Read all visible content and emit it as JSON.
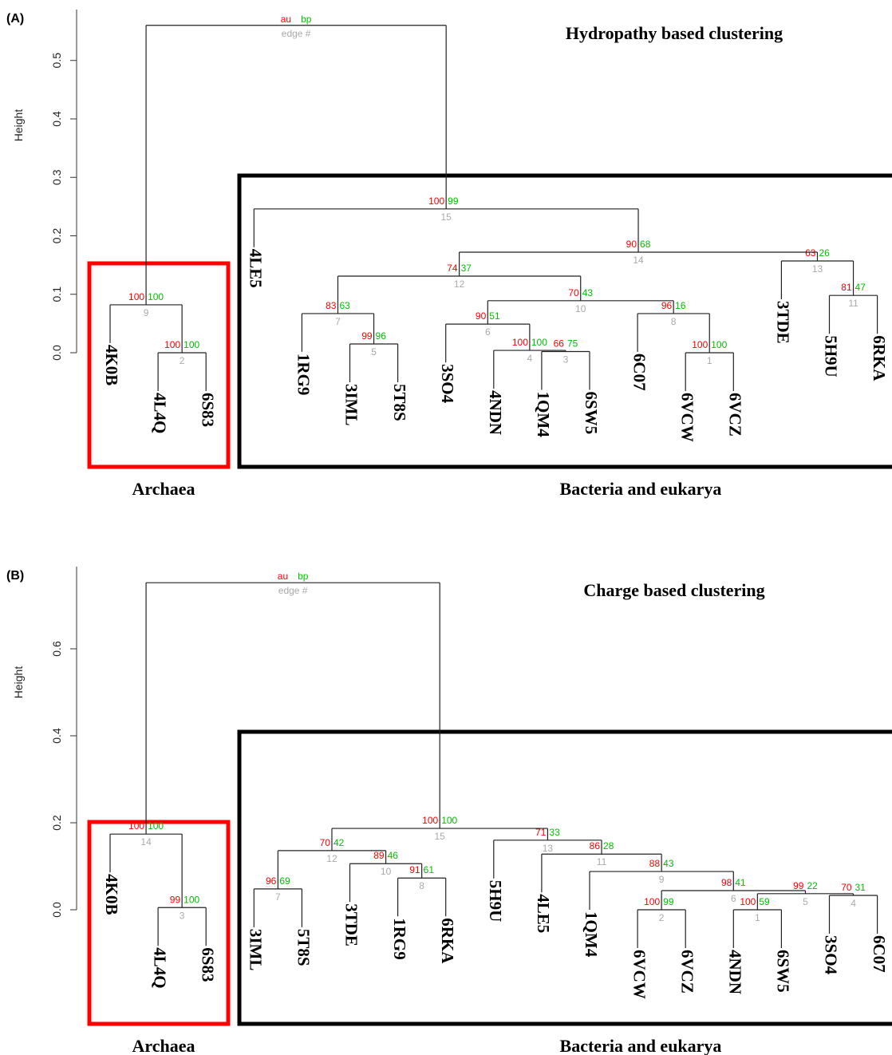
{
  "chart_data": [
    {
      "type": "dendrogram",
      "panel": "(A)",
      "title": "Hydropathy based clustering",
      "ylabel": "Height",
      "ylim": [
        0,
        0.587
      ],
      "yticks": [
        {
          "value": 0,
          "label": "0.0"
        },
        0.1,
        0.2,
        0.3,
        0.4,
        0.5
      ],
      "legend": [
        "au",
        "bp",
        "edge #"
      ],
      "colors": {
        "au": "#ff0000",
        "bp": "#00c000",
        "edge": "#aaaaaa"
      },
      "leaves": [
        "4K0B",
        "4L4Q",
        "6S83",
        "4LE5",
        "1RG9",
        "3IML",
        "5T8S",
        "3SO4",
        "4NDN",
        "1QM4",
        "6SW5",
        "6C07",
        "6VCW",
        "6VCZ",
        "3TDE",
        "5H9U",
        "6RKA"
      ],
      "root": {
        "height": 0.56,
        "children": [
          9,
          15
        ]
      },
      "nodes": [
        {
          "edge": 2,
          "height": 0.0,
          "au": 100,
          "bp": 100,
          "children": [
            "4L4Q",
            "6S83"
          ]
        },
        {
          "edge": 9,
          "height": 0.082,
          "au": 100,
          "bp": 100,
          "children": [
            "4K0B",
            2
          ]
        },
        {
          "edge": 1,
          "height": 0.0,
          "au": 100,
          "bp": 100,
          "children": [
            "6VCW",
            "6VCZ"
          ]
        },
        {
          "edge": 3,
          "height": 0.002,
          "au": 66,
          "bp": 75,
          "children": [
            "1QM4",
            "6SW5"
          ]
        },
        {
          "edge": 4,
          "height": 0.004,
          "au": 100,
          "bp": 100,
          "children": [
            "4NDN",
            3
          ]
        },
        {
          "edge": 5,
          "height": 0.015,
          "au": 99,
          "bp": 96,
          "children": [
            "3IML",
            "5T8S"
          ]
        },
        {
          "edge": 6,
          "height": 0.049,
          "au": 90,
          "bp": 51,
          "children": [
            "3SO4",
            4
          ]
        },
        {
          "edge": 7,
          "height": 0.067,
          "au": 83,
          "bp": 63,
          "children": [
            "1RG9",
            5
          ]
        },
        {
          "edge": 8,
          "height": 0.067,
          "au": 96,
          "bp": 16,
          "children": [
            "6C07",
            1
          ]
        },
        {
          "edge": 10,
          "height": 0.089,
          "au": 70,
          "bp": 43,
          "children": [
            6,
            8
          ]
        },
        {
          "edge": 11,
          "height": 0.098,
          "au": 81,
          "bp": 47,
          "children": [
            "5H9U",
            "6RKA"
          ]
        },
        {
          "edge": 12,
          "height": 0.131,
          "au": 74,
          "bp": 37,
          "children": [
            7,
            10
          ]
        },
        {
          "edge": 13,
          "height": 0.157,
          "au": 63,
          "bp": 26,
          "children": [
            "3TDE",
            11
          ]
        },
        {
          "edge": 14,
          "height": 0.172,
          "au": 90,
          "bp": 68,
          "children": [
            12,
            13
          ]
        },
        {
          "edge": 15,
          "height": 0.246,
          "au": 100,
          "bp": 99,
          "children": [
            "4LE5",
            14
          ]
        }
      ],
      "groups": [
        {
          "label": "Archaea",
          "color": "#ff0000"
        },
        {
          "label": "Bacteria and eukarya",
          "color": "#000000"
        }
      ]
    },
    {
      "type": "dendrogram",
      "panel": "(B)",
      "title": "Charge based clustering",
      "ylabel": "Height",
      "ylim": [
        0,
        0.789
      ],
      "yticks": [
        {
          "value": 0,
          "label": "0.0"
        },
        0.2,
        0.4,
        0.6
      ],
      "legend": [
        "au",
        "bp",
        "edge #"
      ],
      "colors": {
        "au": "#ff0000",
        "bp": "#00c000",
        "edge": "#aaaaaa"
      },
      "leaves": [
        "4K0B",
        "4L4Q",
        "6S83",
        "3IML",
        "5T8S",
        "3TDE",
        "1RG9",
        "6RKA",
        "5H9U",
        "4LE5",
        "1QM4",
        "6VCW",
        "6VCZ",
        "4NDN",
        "6SW5",
        "3SO4",
        "6C07"
      ],
      "root": {
        "height": 0.752,
        "children": [
          14,
          15
        ]
      },
      "nodes": [
        {
          "edge": 1,
          "height": 0.0,
          "au": 100,
          "bp": 59,
          "children": [
            "4NDN",
            "6SW5"
          ]
        },
        {
          "edge": 2,
          "height": 0.0,
          "au": 100,
          "bp": 99,
          "children": [
            "6VCW",
            "6VCZ"
          ]
        },
        {
          "edge": 3,
          "height": 0.005,
          "au": 99,
          "bp": 100,
          "children": [
            "4L4Q",
            "6S83"
          ]
        },
        {
          "edge": 4,
          "height": 0.033,
          "au": 70,
          "bp": 31,
          "children": [
            "3SO4",
            "6C07"
          ]
        },
        {
          "edge": 5,
          "height": 0.037,
          "au": 99,
          "bp": 22,
          "children": [
            1,
            4
          ]
        },
        {
          "edge": 6,
          "height": 0.044,
          "au": 98,
          "bp": 41,
          "children": [
            2,
            5
          ]
        },
        {
          "edge": 7,
          "height": 0.048,
          "au": 96,
          "bp": 69,
          "children": [
            "3IML",
            "5T8S"
          ]
        },
        {
          "edge": 8,
          "height": 0.073,
          "au": 91,
          "bp": 61,
          "children": [
            "1RG9",
            "6RKA"
          ]
        },
        {
          "edge": 9,
          "height": 0.088,
          "au": 88,
          "bp": 43,
          "children": [
            "1QM4",
            6
          ]
        },
        {
          "edge": 10,
          "height": 0.106,
          "au": 89,
          "bp": 46,
          "children": [
            "3TDE",
            8
          ]
        },
        {
          "edge": 11,
          "height": 0.128,
          "au": 86,
          "bp": 28,
          "children": [
            "4LE5",
            9
          ]
        },
        {
          "edge": 12,
          "height": 0.136,
          "au": 70,
          "bp": 42,
          "children": [
            7,
            10
          ]
        },
        {
          "edge": 13,
          "height": 0.16,
          "au": 71,
          "bp": 33,
          "children": [
            "5H9U",
            11
          ]
        },
        {
          "edge": 14,
          "height": 0.174,
          "au": 100,
          "bp": 100,
          "children": [
            "4K0B",
            3
          ]
        },
        {
          "edge": 15,
          "height": 0.187,
          "au": 100,
          "bp": 100,
          "children": [
            12,
            13
          ]
        }
      ],
      "groups": [
        {
          "label": "Archaea",
          "color": "#ff0000"
        },
        {
          "label": "Bacteria and eukarya",
          "color": "#000000"
        }
      ]
    }
  ]
}
